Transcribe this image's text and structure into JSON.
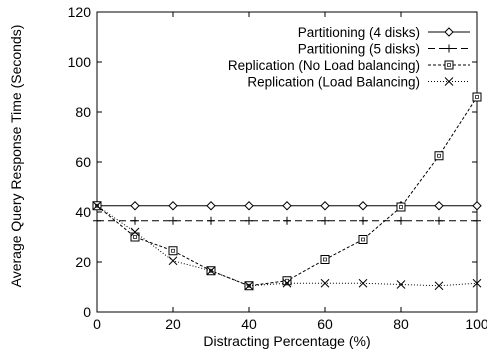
{
  "chart_data": {
    "type": "line",
    "xlabel": "Distracting Percentage (%)",
    "ylabel": "Average Query Response Time (Seconds)",
    "xlim": [
      0,
      100
    ],
    "ylim": [
      0,
      120
    ],
    "x_ticks": [
      0,
      20,
      40,
      60,
      80,
      100
    ],
    "y_ticks": [
      0,
      20,
      40,
      60,
      80,
      100,
      120
    ],
    "grid": false,
    "legend_position": "top-right",
    "x": [
      0,
      10,
      20,
      30,
      40,
      50,
      60,
      70,
      80,
      90,
      100
    ],
    "series": [
      {
        "name": "Partitioning (4 disks)",
        "marker": "diamond",
        "line": "solid",
        "values": [
          42.5,
          42.5,
          42.5,
          42.5,
          42.5,
          42.5,
          42.5,
          42.5,
          42.5,
          42.5,
          42.5
        ]
      },
      {
        "name": "Partitioning (5 disks)",
        "marker": "plus",
        "line": "dashed",
        "values": [
          36.5,
          36.5,
          36.5,
          36.5,
          36.5,
          36.5,
          36.5,
          36.5,
          36.5,
          36.5,
          36.5
        ]
      },
      {
        "name": "Replication (No Load balancing)",
        "marker": "square",
        "line": "dashdot",
        "values": [
          42.5,
          30,
          24.5,
          16.5,
          10.5,
          12.5,
          21,
          29,
          42,
          62.5,
          86
        ]
      },
      {
        "name": "Replication (Load Balancing)",
        "marker": "cross",
        "line": "dotted",
        "values": [
          42.5,
          32,
          20.5,
          16.5,
          10.5,
          11.5,
          11.5,
          11.5,
          11,
          10.5,
          11.5
        ]
      }
    ]
  }
}
